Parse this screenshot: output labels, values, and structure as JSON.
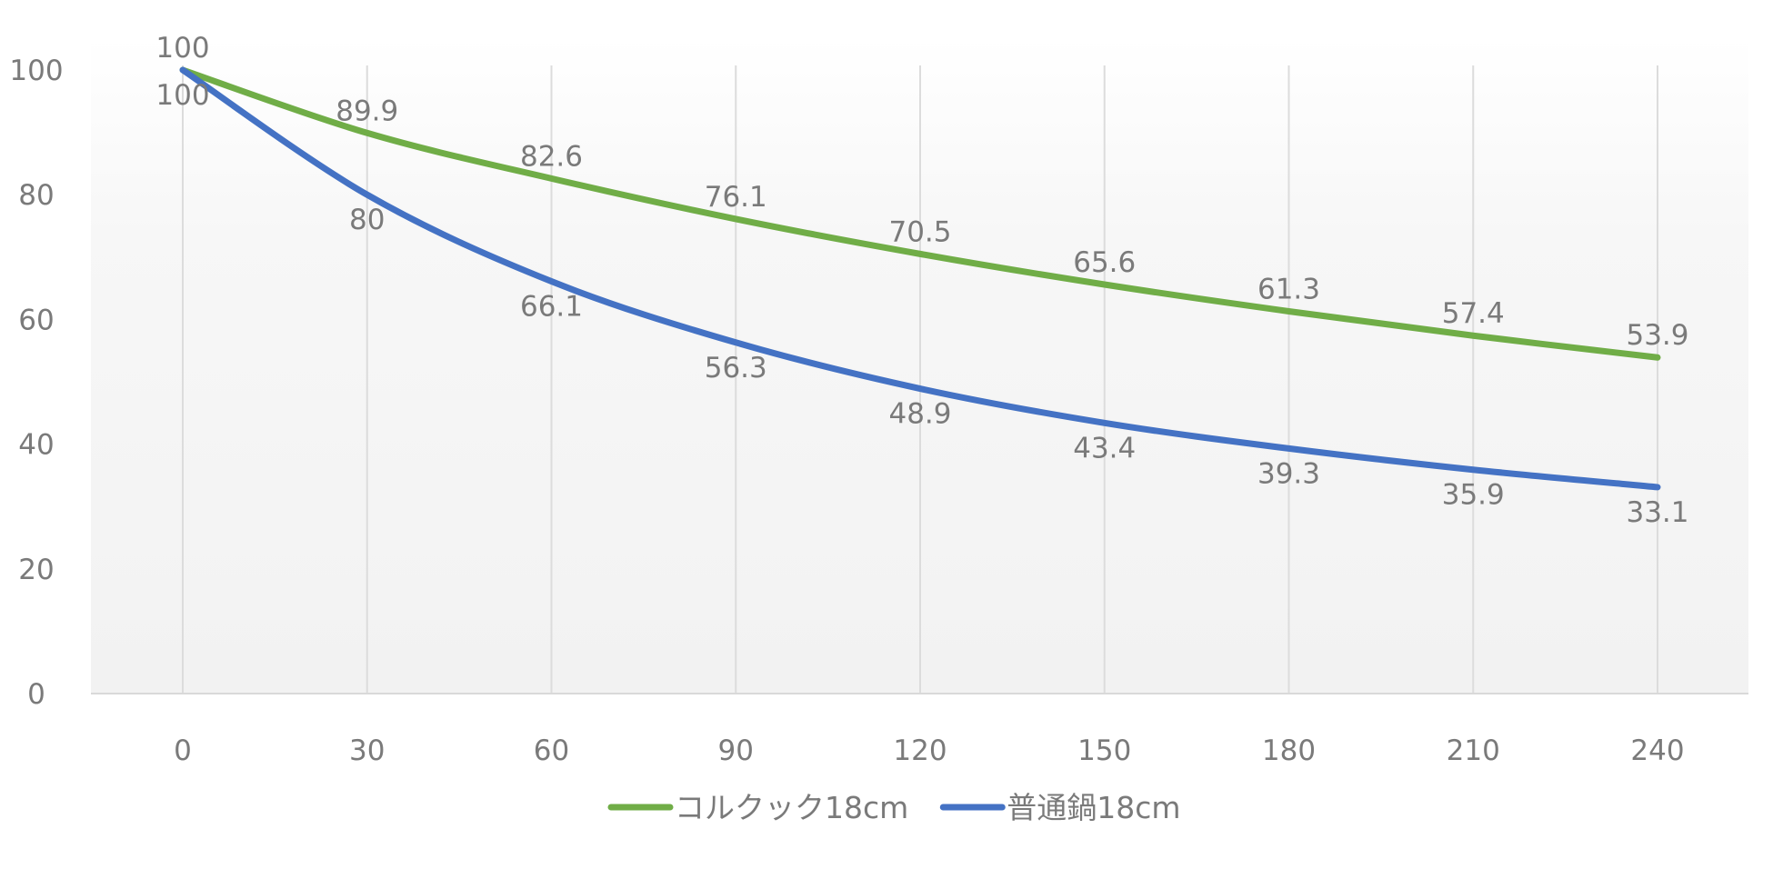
{
  "chart_data": {
    "type": "line",
    "smooth": true,
    "x": [
      0,
      30,
      60,
      90,
      120,
      150,
      180,
      210,
      240
    ],
    "xticks": [
      "0",
      "30",
      "60",
      "90",
      "120",
      "150",
      "180",
      "210",
      "240"
    ],
    "yticks": [
      "0",
      "20",
      "40",
      "60",
      "80",
      "100"
    ],
    "ylim": [
      0,
      100
    ],
    "grid": "vertical",
    "legend": "bottom",
    "series": [
      {
        "name": "コルクック18cm",
        "color": "#70AD47",
        "values": [
          100,
          89.9,
          82.6,
          76.1,
          70.5,
          65.6,
          61.3,
          57.4,
          53.9
        ]
      },
      {
        "name": "普通鍋18cm",
        "color": "#4472C4",
        "values": [
          100,
          80,
          66.1,
          56.3,
          48.9,
          43.4,
          39.3,
          35.9,
          33.1
        ]
      }
    ]
  }
}
